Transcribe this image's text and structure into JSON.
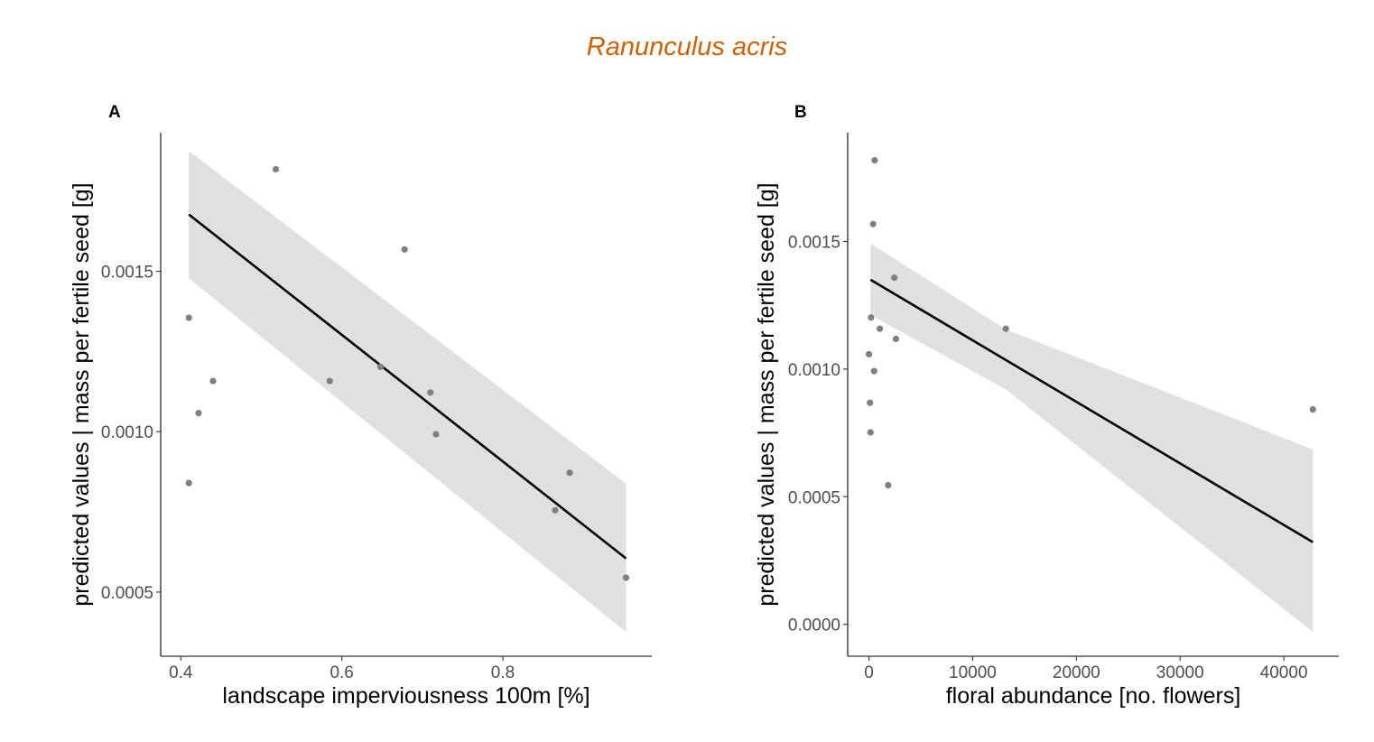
{
  "figure": {
    "title": "Ranunculus acris",
    "title_color": "#d45f00"
  },
  "chart_data": [
    {
      "type": "scatter",
      "panel_label": "A",
      "xlabel": "landscape imperviousness 100m [%]",
      "ylabel": "predicted values | mass per fertile seed [g]",
      "xlim": [
        0.375,
        0.985
      ],
      "ylim": [
        0.0003,
        0.001932
      ],
      "x_ticks": [
        0.4,
        0.6,
        0.8
      ],
      "x_tick_labels": [
        "0.4",
        "0.6",
        "0.8"
      ],
      "y_ticks": [
        0.0005,
        0.001,
        0.0015
      ],
      "y_tick_labels": [
        "0.0005",
        "0.0010",
        "0.0015"
      ],
      "grid": false,
      "points": {
        "x": [
          0.41,
          0.41,
          0.422,
          0.44,
          0.518,
          0.585,
          0.648,
          0.678,
          0.71,
          0.717,
          0.865,
          0.883,
          0.953
        ],
        "y": [
          0.001355,
          0.00084,
          0.001058,
          0.001158,
          0.001818,
          0.001158,
          0.001202,
          0.001568,
          0.001122,
          0.000992,
          0.000755,
          0.000872,
          0.000545
        ]
      },
      "fit": {
        "x": [
          0.41,
          0.953
        ],
        "y": [
          0.001677,
          0.000605
        ]
      },
      "ci_band": {
        "x": [
          0.41,
          0.953
        ],
        "lower": [
          0.001478,
          0.000375
        ],
        "upper": [
          0.001875,
          0.000838
        ]
      },
      "colors": {
        "points": "#7f7f7f",
        "line": "#000000",
        "band": "#e0e0e0"
      }
    },
    {
      "type": "scatter",
      "panel_label": "B",
      "xlabel": "floral abundance [no. flowers]",
      "ylabel": "predicted values | mass per fertile seed [g]",
      "xlim": [
        -2050,
        45300
      ],
      "ylim": [
        -0.000125,
        0.001926
      ],
      "x_ticks": [
        0,
        10000,
        20000,
        30000,
        40000
      ],
      "x_tick_labels": [
        "0",
        "10000",
        "20000",
        "30000",
        "40000"
      ],
      "y_ticks": [
        0,
        0.0005,
        0.001,
        0.0015
      ],
      "y_tick_labels": [
        "0.0000",
        "0.0005",
        "0.0010",
        "0.0015"
      ],
      "grid": false,
      "points": {
        "x": [
          0,
          100,
          150,
          200,
          400,
          500,
          550,
          1050,
          1850,
          2450,
          2600,
          13200,
          42800
        ],
        "y": [
          0.001058,
          0.000868,
          0.000752,
          0.001202,
          0.001568,
          0.000992,
          0.001818,
          0.001158,
          0.000545,
          0.001358,
          0.001118,
          0.001158,
          0.000842
        ]
      },
      "fit": {
        "x": [
          150,
          42800
        ],
        "y": [
          0.00135,
          0.000322
        ]
      },
      "ci_band": {
        "x": [
          150,
          13200,
          42800
        ],
        "lower": [
          0.001212,
          0.00092,
          -3e-05
        ],
        "upper": [
          0.001492,
          0.001155,
          0.000685
        ]
      },
      "colors": {
        "points": "#7f7f7f",
        "line": "#000000",
        "band": "#e0e0e0"
      }
    }
  ]
}
